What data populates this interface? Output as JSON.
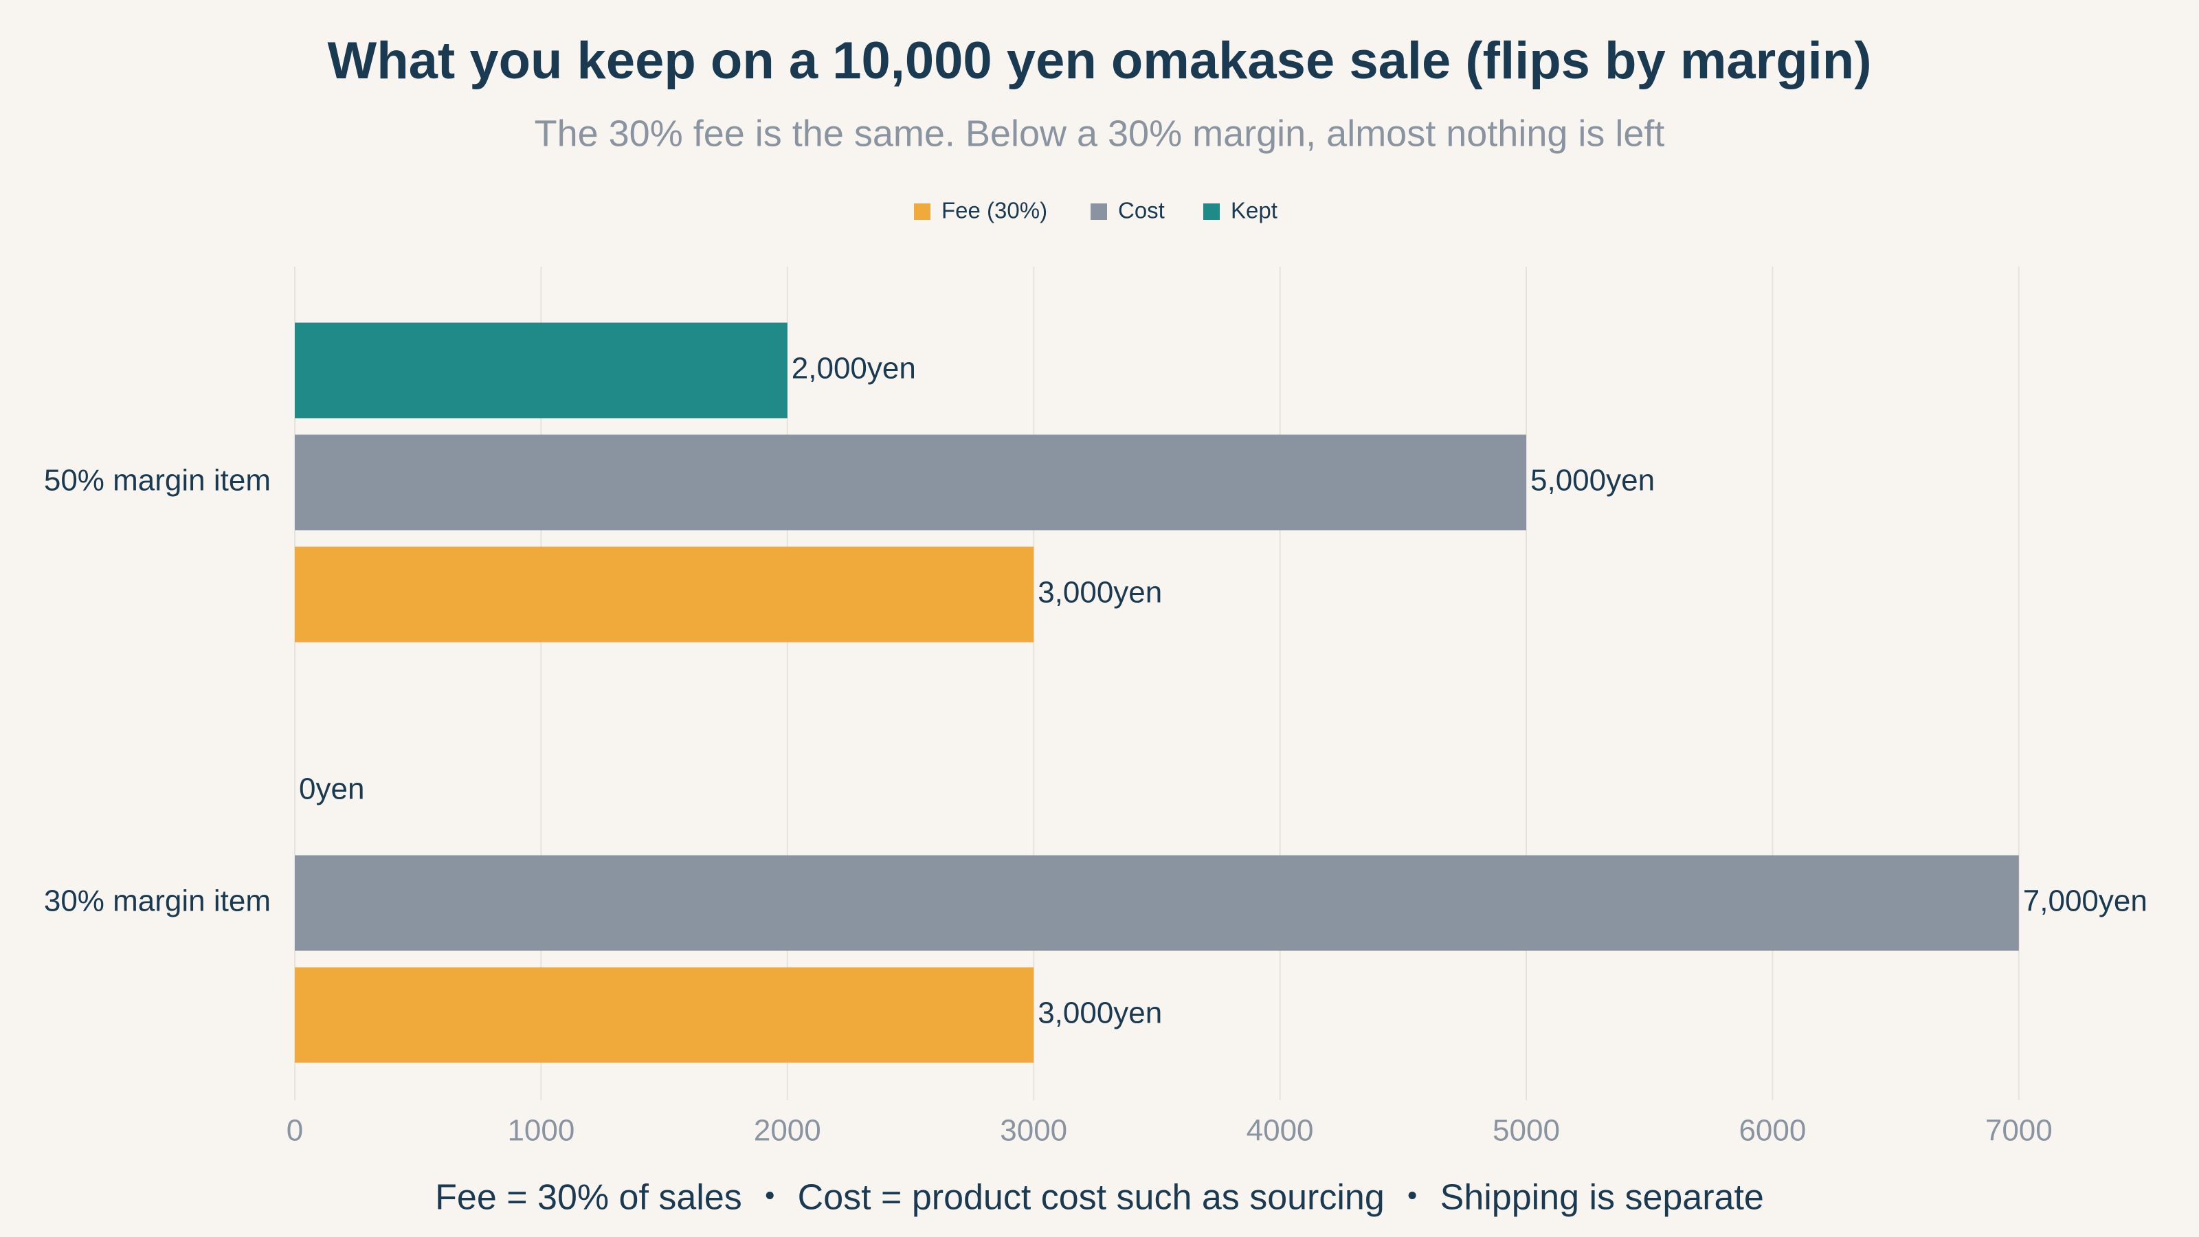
{
  "chart_data": {
    "type": "hbar",
    "title": "What you keep on a 10,000 yen omakase sale (flips by margin)",
    "subtitle": "The 30% fee is the same. Below a 30% margin, almost nothing is left",
    "note": "Fee = 30% of sales ・ Cost = product cost such as sourcing ・ Shipping is separate",
    "categories": [
      "50% margin item",
      "30% margin item"
    ],
    "series": [
      {
        "name": "Fee (30%)",
        "color": "#f0a93b",
        "values": [
          3000,
          3000
        ],
        "value_labels": [
          "3,000yen",
          "3,000yen"
        ]
      },
      {
        "name": "Cost",
        "color": "#8a93a0",
        "values": [
          5000,
          7000
        ],
        "value_labels": [
          "5,000yen",
          "7,000yen"
        ]
      },
      {
        "name": "Kept",
        "color": "#1f8a87",
        "values": [
          2000,
          0
        ],
        "value_labels": [
          "2,000yen",
          "0yen"
        ]
      }
    ],
    "xlim": [
      0,
      7500
    ],
    "xticks": [
      0,
      1000,
      2000,
      3000,
      4000,
      5000,
      6000,
      7000
    ],
    "grid": true,
    "legend": "top"
  }
}
